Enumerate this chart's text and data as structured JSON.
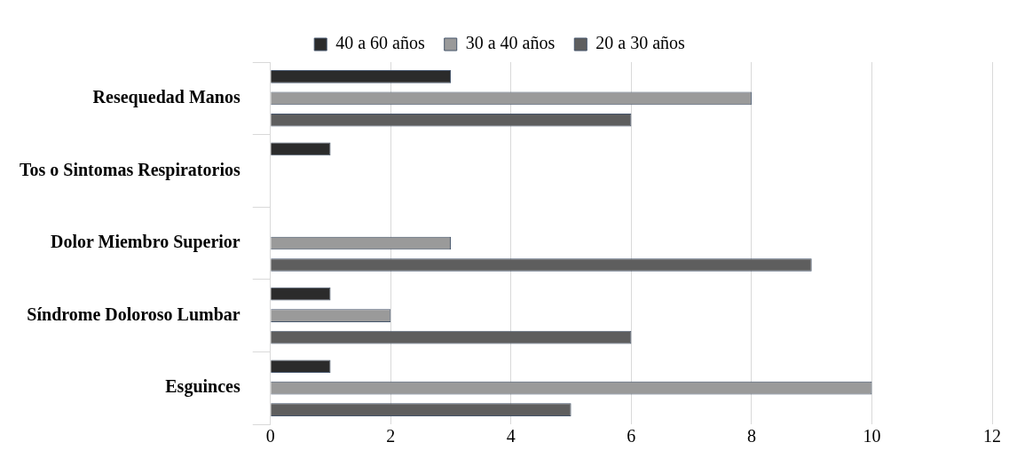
{
  "chart_data": {
    "type": "bar",
    "orientation": "horizontal",
    "categories": [
      "Resequedad Manos",
      "Tos o Sintomas Respiratorios",
      "Dolor Miembro Superior",
      "Síndrome Doloroso Lumbar",
      "Esguinces"
    ],
    "series": [
      {
        "name": "40 a 60 años",
        "color": "#2b2b2b",
        "values": [
          3,
          1,
          null,
          1,
          1
        ]
      },
      {
        "name": "30 a 40 años",
        "color": "#9a9a9a",
        "values": [
          8,
          null,
          3,
          2,
          10
        ]
      },
      {
        "name": "20 a 30 años",
        "color": "#5e5e5e",
        "values": [
          6,
          null,
          9,
          6,
          5
        ]
      }
    ],
    "xlim": [
      0,
      12
    ],
    "xticks": [
      0,
      2,
      4,
      6,
      8,
      10,
      12
    ],
    "grid": "x",
    "legend": "top"
  }
}
